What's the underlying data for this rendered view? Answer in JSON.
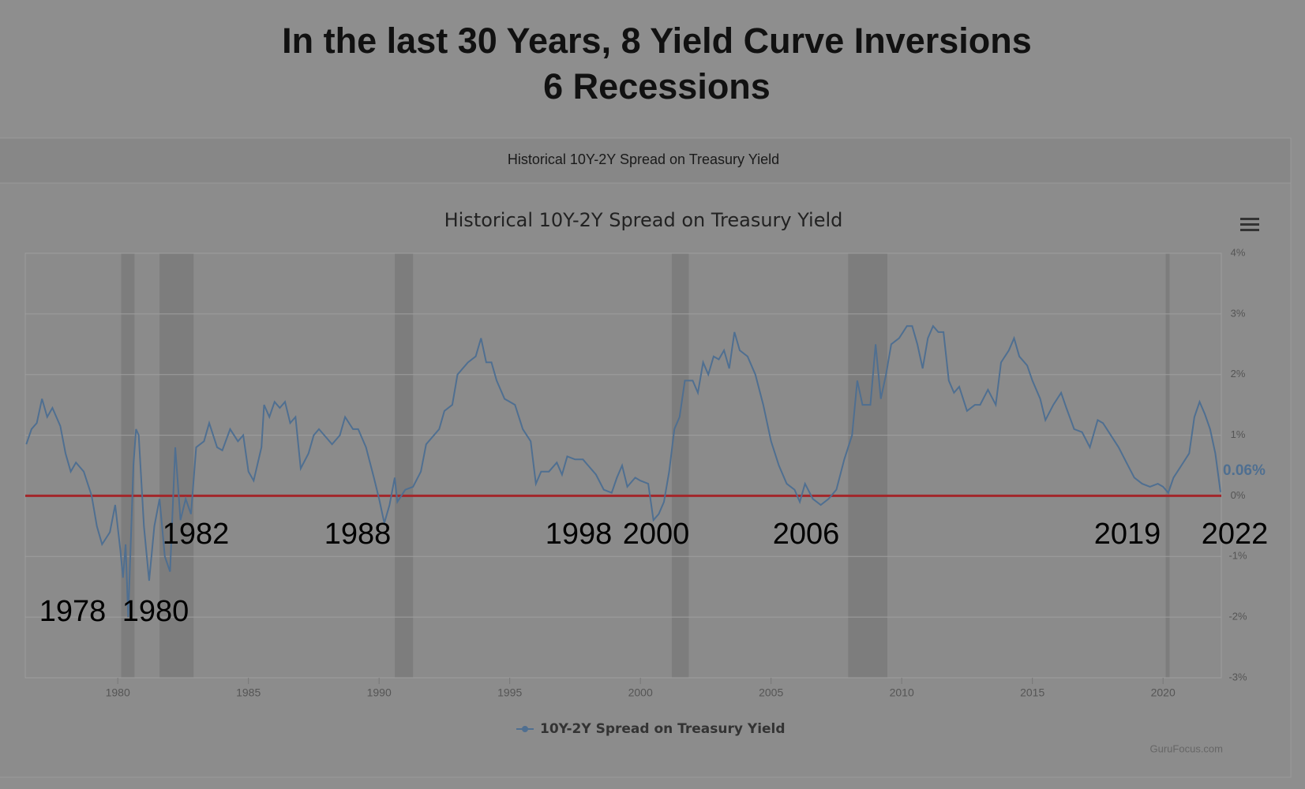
{
  "page_title": [
    "In the last 30 Years, 8 Yield Curve Inversions",
    "6 Recessions"
  ],
  "panel_header": "Historical 10Y-2Y Spread on Treasury Yield",
  "credit": "GuruFocus.com",
  "chart_data": {
    "type": "line",
    "title": "Historical 10Y-2Y Spread on Treasury Yield",
    "x": [
      1976.5,
      1976.7,
      1976.9,
      1977.1,
      1977.3,
      1977.5,
      1977.8,
      1978.0,
      1978.2,
      1978.4,
      1978.7,
      1979.0,
      1979.2,
      1979.4,
      1979.7,
      1979.9,
      1980.1,
      1980.2,
      1980.3,
      1980.4,
      1980.6,
      1980.7,
      1980.8,
      1981.0,
      1981.2,
      1981.4,
      1981.6,
      1981.8,
      1982.0,
      1982.2,
      1982.4,
      1982.6,
      1982.8,
      1983.0,
      1983.3,
      1983.5,
      1983.8,
      1984.0,
      1984.3,
      1984.6,
      1984.8,
      1985.0,
      1985.2,
      1985.5,
      1985.6,
      1985.8,
      1986.0,
      1986.2,
      1986.4,
      1986.6,
      1986.8,
      1987.0,
      1987.3,
      1987.5,
      1987.7,
      1988.0,
      1988.2,
      1988.5,
      1988.7,
      1989.0,
      1989.2,
      1989.5,
      1989.8,
      1990.0,
      1990.2,
      1990.4,
      1990.6,
      1990.7,
      1991.0,
      1991.3,
      1991.6,
      1991.8,
      1992.0,
      1992.3,
      1992.5,
      1992.8,
      1993.0,
      1993.2,
      1993.4,
      1993.7,
      1993.9,
      1994.1,
      1994.3,
      1994.5,
      1994.8,
      1995.0,
      1995.2,
      1995.5,
      1995.8,
      1996.0,
      1996.2,
      1996.5,
      1996.8,
      1997.0,
      1997.2,
      1997.5,
      1997.8,
      1998.0,
      1998.3,
      1998.6,
      1998.9,
      1999.1,
      1999.3,
      1999.5,
      1999.8,
      2000.0,
      2000.3,
      2000.5,
      2000.7,
      2000.9,
      2001.1,
      2001.3,
      2001.5,
      2001.7,
      2002.0,
      2002.2,
      2002.4,
      2002.6,
      2002.8,
      2003.0,
      2003.2,
      2003.4,
      2003.6,
      2003.8,
      2004.1,
      2004.4,
      2004.7,
      2005.0,
      2005.3,
      2005.6,
      2005.9,
      2006.1,
      2006.3,
      2006.6,
      2006.9,
      2007.2,
      2007.5,
      2007.8,
      2008.1,
      2008.3,
      2008.5,
      2008.8,
      2009.0,
      2009.2,
      2009.4,
      2009.6,
      2009.9,
      2010.2,
      2010.4,
      2010.6,
      2010.8,
      2011.0,
      2011.2,
      2011.4,
      2011.6,
      2011.8,
      2012.0,
      2012.2,
      2012.5,
      2012.8,
      2013.0,
      2013.3,
      2013.6,
      2013.8,
      2014.1,
      2014.3,
      2014.5,
      2014.8,
      2015.0,
      2015.3,
      2015.5,
      2015.8,
      2016.1,
      2016.3,
      2016.6,
      2016.9,
      2017.2,
      2017.5,
      2017.7,
      2018.0,
      2018.3,
      2018.6,
      2018.9,
      2019.2,
      2019.5,
      2019.8,
      2020.0,
      2020.2,
      2020.4,
      2020.7,
      2021.0,
      2021.2,
      2021.4,
      2021.6,
      2021.8,
      2022.0,
      2022.2
    ],
    "series": [
      {
        "name": "10Y-2Y Spread on Treasury Yield",
        "color": "#4f6f91",
        "values": [
          0.85,
          1.1,
          1.2,
          1.6,
          1.3,
          1.45,
          1.15,
          0.7,
          0.4,
          0.55,
          0.4,
          0.0,
          -0.5,
          -0.8,
          -0.6,
          -0.15,
          -0.9,
          -1.35,
          -0.8,
          -2.0,
          0.5,
          1.1,
          1.0,
          -0.5,
          -1.4,
          -0.5,
          -0.05,
          -1.0,
          -1.25,
          0.8,
          -0.4,
          -0.05,
          -0.3,
          0.8,
          0.9,
          1.2,
          0.8,
          0.75,
          1.1,
          0.9,
          1.0,
          0.4,
          0.25,
          0.8,
          1.5,
          1.3,
          1.55,
          1.45,
          1.55,
          1.2,
          1.3,
          0.45,
          0.7,
          1.0,
          1.1,
          0.95,
          0.85,
          1.0,
          1.3,
          1.1,
          1.1,
          0.8,
          0.3,
          -0.05,
          -0.45,
          -0.15,
          0.3,
          -0.1,
          0.1,
          0.15,
          0.4,
          0.85,
          0.95,
          1.1,
          1.4,
          1.5,
          2.0,
          2.1,
          2.2,
          2.3,
          2.6,
          2.2,
          2.2,
          1.9,
          1.6,
          1.55,
          1.5,
          1.1,
          0.9,
          0.2,
          0.4,
          0.4,
          0.55,
          0.35,
          0.65,
          0.6,
          0.6,
          0.5,
          0.35,
          0.1,
          0.05,
          0.3,
          0.5,
          0.15,
          0.3,
          0.25,
          0.2,
          -0.4,
          -0.3,
          -0.1,
          0.4,
          1.1,
          1.3,
          1.9,
          1.9,
          1.7,
          2.2,
          2.0,
          2.3,
          2.25,
          2.4,
          2.1,
          2.7,
          2.4,
          2.3,
          2.0,
          1.5,
          0.9,
          0.5,
          0.2,
          0.1,
          -0.1,
          0.2,
          -0.05,
          -0.15,
          -0.05,
          0.1,
          0.6,
          1.0,
          1.9,
          1.5,
          1.5,
          2.5,
          1.6,
          2.0,
          2.5,
          2.6,
          2.8,
          2.8,
          2.5,
          2.1,
          2.6,
          2.8,
          2.7,
          2.7,
          1.9,
          1.7,
          1.8,
          1.4,
          1.5,
          1.5,
          1.75,
          1.5,
          2.2,
          2.4,
          2.6,
          2.3,
          2.15,
          1.9,
          1.6,
          1.25,
          1.5,
          1.7,
          1.45,
          1.1,
          1.05,
          0.8,
          1.25,
          1.2,
          1.0,
          0.8,
          0.55,
          0.3,
          0.2,
          0.15,
          0.2,
          0.15,
          0.05,
          0.3,
          0.5,
          0.7,
          1.3,
          1.55,
          1.35,
          1.1,
          0.7,
          0.06
        ]
      }
    ],
    "end_label": "0.06%",
    "reference_line": {
      "value": 0,
      "color": "#a3262a"
    },
    "recessions": [
      [
        1980.13,
        1980.64
      ],
      [
        1981.6,
        1982.9
      ],
      [
        1990.6,
        1991.3
      ],
      [
        2001.2,
        2001.85
      ],
      [
        2007.95,
        2009.45
      ],
      [
        2020.1,
        2020.25
      ]
    ],
    "recession_color": "#7d7d7d",
    "xlim": [
      1976.46,
      2022.23
    ],
    "xticks": [
      1980,
      1985,
      1990,
      1995,
      2000,
      2005,
      2010,
      2015,
      2020
    ],
    "ylim": [
      -3,
      4
    ],
    "yticks": [
      {
        "value": -3,
        "label": "-3%"
      },
      {
        "value": -2,
        "label": "-2%"
      },
      {
        "value": -1,
        "label": "-1%"
      },
      {
        "value": 0,
        "label": "0%"
      },
      {
        "value": 1,
        "label": "1%"
      },
      {
        "value": 2,
        "label": "2%"
      },
      {
        "value": 3,
        "label": "3%"
      },
      {
        "value": 4,
        "label": "4%"
      }
    ],
    "grid": true,
    "annotations": [
      "1978",
      "1980",
      "1982",
      "1988",
      "1998",
      "2000",
      "2006",
      "2019",
      "2022"
    ]
  }
}
